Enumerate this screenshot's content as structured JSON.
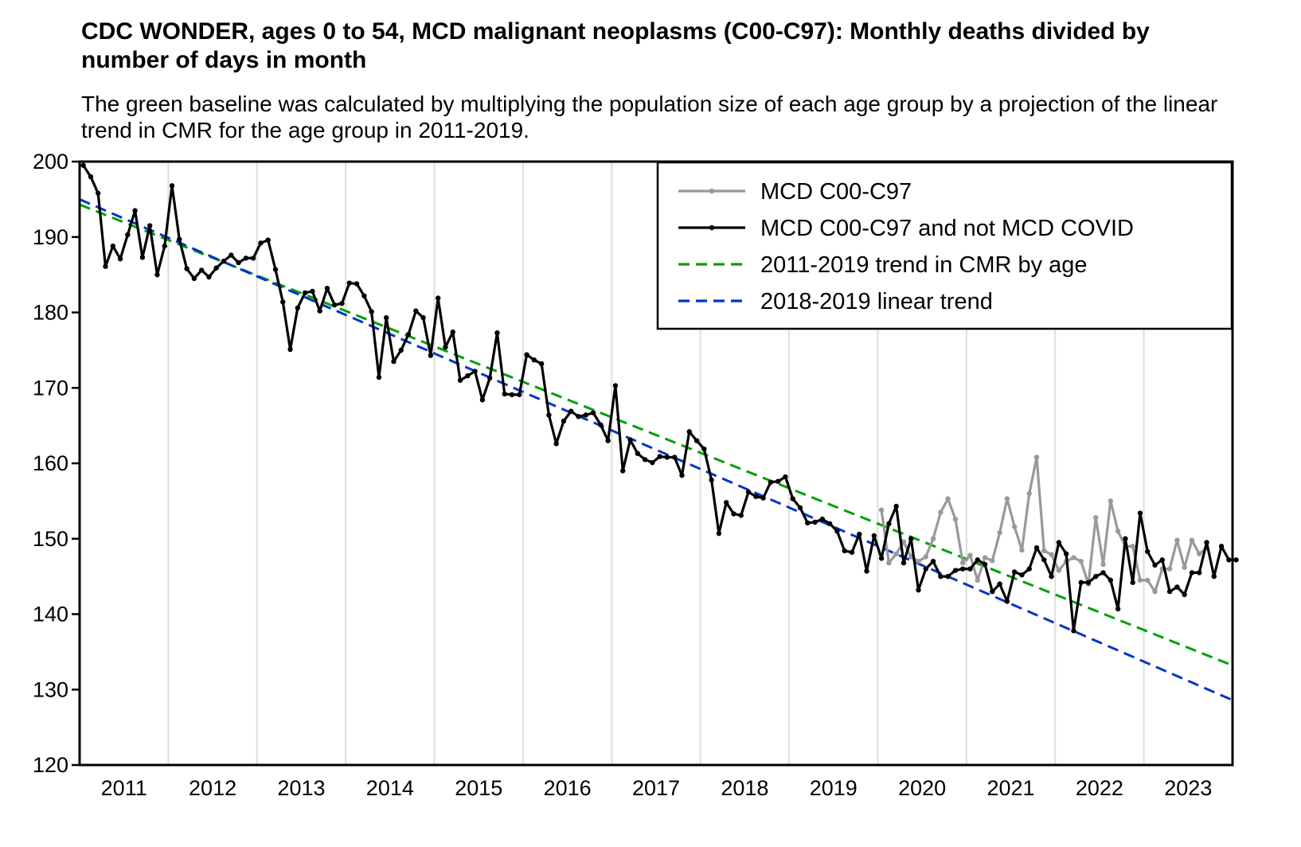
{
  "chart_data": {
    "type": "line",
    "title": "CDC WONDER, ages 0 to 54, MCD malignant neoplasms (C00-C97): Monthly deaths divided by number of days in month",
    "subtitle": "The green baseline was calculated by multiplying the population size of each age group by a projection of the linear trend in CMR for the age group in 2011-2019.",
    "xlabel": "",
    "ylabel": "",
    "ylim": [
      120,
      200
    ],
    "yticks": [
      "120",
      "130",
      "140",
      "150",
      "160",
      "170",
      "180",
      "190",
      "200"
    ],
    "xticks": [
      "2011",
      "2012",
      "2013",
      "2014",
      "2015",
      "2016",
      "2017",
      "2018",
      "2019",
      "2020",
      "2021",
      "2022",
      "2023"
    ],
    "x_start": "2011-01",
    "x_end": "2023-12",
    "grid": "vertical at year boundaries",
    "legend_position": "top-right",
    "series": [
      {
        "name": "MCD C00-C97",
        "color": "#999999",
        "style": "solid-with-markers",
        "start": "2020-01",
        "values": [
          153.8,
          146.8,
          148.0,
          149.6,
          147.6,
          147.0,
          147.6,
          150.0,
          153.5,
          155.3,
          152.6,
          146.8,
          147.8,
          144.5,
          147.5,
          147.1,
          150.8,
          155.3,
          151.6,
          148.5,
          156.0,
          160.8,
          148.4,
          147.9,
          145.8,
          147.0,
          147.5,
          147.0,
          144.0,
          152.8,
          146.6,
          155.0,
          151.0,
          149.0,
          149.0,
          144.5,
          144.5,
          143.0,
          146.0,
          146.0,
          149.8,
          146.2,
          149.8,
          148.0,
          148.8
        ]
      },
      {
        "name": "MCD C00-C97 and not MCD COVID",
        "color": "#000000",
        "style": "solid-with-markers",
        "start": "2011-01",
        "values": [
          199.5,
          198.0,
          195.8,
          186.1,
          188.8,
          187.1,
          190.3,
          193.5,
          187.3,
          191.5,
          185.0,
          188.8,
          196.8,
          189.7,
          185.8,
          184.5,
          185.6,
          184.7,
          185.9,
          186.8,
          187.6,
          186.6,
          187.2,
          187.2,
          189.2,
          189.6,
          185.7,
          181.4,
          175.1,
          180.6,
          182.6,
          182.8,
          180.2,
          183.2,
          181.0,
          181.2,
          183.9,
          183.8,
          182.2,
          180.1,
          171.4,
          179.3,
          173.5,
          175.0,
          177.1,
          180.2,
          179.3,
          174.3,
          181.9,
          175.4,
          177.4,
          171.0,
          171.6,
          172.2,
          168.4,
          171.3,
          177.3,
          169.2,
          169.1,
          169.1,
          174.4,
          173.7,
          173.2,
          166.4,
          162.6,
          165.6,
          166.9,
          166.2,
          166.4,
          166.7,
          165.1,
          163.0,
          170.3,
          159.0,
          163.1,
          161.3,
          160.5,
          160.1,
          160.9,
          160.8,
          160.8,
          158.4,
          164.2,
          163.0,
          161.9,
          157.8,
          150.7,
          154.8,
          153.3,
          153.1,
          156.2,
          155.6,
          155.4,
          157.5,
          157.6,
          158.2,
          155.3,
          154.1,
          152.1,
          152.2,
          152.6,
          152.0,
          151.0,
          148.4,
          148.2,
          150.6,
          145.7,
          150.4,
          147.4,
          152.0,
          154.3,
          146.8,
          150.0,
          143.2,
          146.0,
          147.0,
          145.0,
          145.0,
          145.8,
          146.0,
          146.0,
          147.2,
          146.6,
          143.0,
          144.0,
          141.7,
          145.6,
          145.2,
          146.0,
          148.8,
          147.2,
          145.0,
          149.5,
          148.0,
          137.8,
          144.2,
          144.2,
          145.0,
          145.5,
          144.5,
          140.7,
          150.0,
          144.2,
          153.4,
          148.3,
          146.5,
          147.2,
          143.0,
          143.6,
          142.6,
          145.5,
          145.5,
          149.5,
          145.0,
          149.0,
          147.2,
          147.2
        ]
      },
      {
        "name": "2011-2019 trend in CMR by age",
        "color": "#00a000",
        "style": "dashed",
        "start_value": 194.3,
        "end_value": 133.2
      },
      {
        "name": "2018-2019 linear trend",
        "color": "#0033cc",
        "style": "dashed",
        "start_value": 195.0,
        "end_value": 128.6
      }
    ]
  }
}
